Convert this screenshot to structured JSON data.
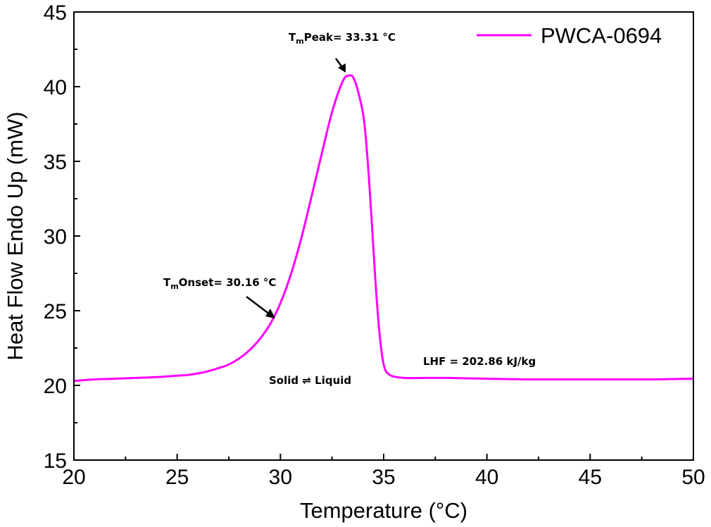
{
  "chart_data": {
    "type": "line",
    "title": "",
    "xlabel": "Temperature (°C)",
    "ylabel": "Heat Flow Endo Up (mW)",
    "xlim": [
      20,
      50
    ],
    "ylim": [
      15,
      45
    ],
    "xticks": [
      20,
      25,
      30,
      35,
      40,
      45,
      50
    ],
    "yticks": [
      15,
      20,
      25,
      30,
      35,
      40,
      45
    ],
    "grid": false,
    "legend_position": "top-right",
    "series": [
      {
        "name": "PWCA-0694",
        "color": "#ff00ff",
        "x": [
          20,
          21,
          22,
          23,
          24,
          25,
          25.5,
          26,
          26.5,
          27,
          27.5,
          28,
          28.5,
          29,
          29.5,
          30,
          30.5,
          31,
          31.5,
          32,
          32.5,
          33,
          33.3,
          33.6,
          34,
          34.2,
          34.4,
          34.6,
          34.8,
          35,
          35.3,
          36,
          37,
          38,
          40,
          42,
          45,
          48,
          50
        ],
        "y": [
          20.3,
          20.4,
          20.45,
          20.5,
          20.55,
          20.65,
          20.7,
          20.8,
          20.95,
          21.15,
          21.4,
          21.8,
          22.35,
          23.1,
          24.1,
          25.5,
          27.4,
          29.8,
          32.6,
          35.5,
          38.3,
          40.3,
          40.75,
          40.4,
          38.2,
          35.5,
          31.5,
          27.0,
          23.5,
          21.4,
          20.7,
          20.5,
          20.5,
          20.5,
          20.45,
          20.4,
          20.4,
          20.4,
          20.45
        ]
      }
    ],
    "annotations": {
      "peak": {
        "prefix": "T",
        "sub": "m",
        "rest": "Peak= 33.31 °C",
        "x": 33.31,
        "y": 40.75
      },
      "onset": {
        "prefix": "T",
        "sub": "m",
        "rest": "Onset= 30.16 °C",
        "x": 30.16,
        "y": 24.8
      },
      "lhf": "LHF = 202.86 kJ/kg",
      "transition": "Solid ⇌ Liquid"
    }
  }
}
